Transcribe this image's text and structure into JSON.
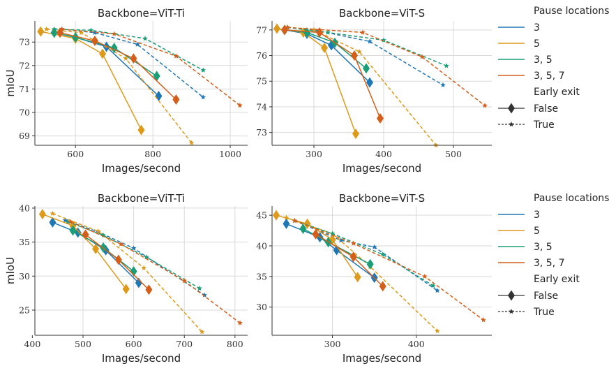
{
  "colors": {
    "3": "#1f77b4",
    "5": "#dd9a1b",
    "3, 5": "#1b9e77",
    "3, 5, 7": "#d35f1a"
  },
  "legend": {
    "title_pause": "Pause locations",
    "items": [
      "3",
      "5",
      "3, 5",
      "3, 5, 7"
    ],
    "title_exit": "Early exit",
    "exit_items": [
      "False",
      "True"
    ]
  },
  "chart_data": [
    {
      "type": "line",
      "title": "Backbone=ViT-Ti",
      "xlabel": "Images/second",
      "ylabel": "mIoU",
      "xlim": [
        495,
        1045
      ],
      "ylim": [
        68.6,
        73.9
      ],
      "xticks": [
        600,
        800,
        1000
      ],
      "yticks": [
        69,
        70,
        71,
        72,
        73
      ],
      "grid": true,
      "series": [
        {
          "name": "3",
          "early_exit": "False",
          "points": [
            [
              545,
              73.4
            ],
            [
              600,
              73.2
            ],
            [
              680,
              72.8
            ],
            [
              815,
              70.7
            ]
          ]
        },
        {
          "name": "3",
          "early_exit": "True",
          "points": [
            [
              565,
              73.55
            ],
            [
              650,
              73.4
            ],
            [
              760,
              72.9
            ],
            [
              930,
              70.65
            ]
          ]
        },
        {
          "name": "5",
          "early_exit": "False",
          "points": [
            [
              510,
              73.45
            ],
            [
              600,
              73.15
            ],
            [
              670,
              72.5
            ],
            [
              770,
              69.25
            ]
          ]
        },
        {
          "name": "5",
          "early_exit": "True",
          "points": [
            [
              525,
              73.55
            ],
            [
              615,
              73.4
            ],
            [
              730,
              72.3
            ],
            [
              900,
              68.7
            ]
          ]
        },
        {
          "name": "3, 5",
          "early_exit": "False",
          "points": [
            [
              545,
              73.4
            ],
            [
              600,
              73.2
            ],
            [
              700,
              72.75
            ],
            [
              810,
              71.55
            ]
          ]
        },
        {
          "name": "3, 5",
          "early_exit": "True",
          "points": [
            [
              545,
              73.55
            ],
            [
              640,
              73.5
            ],
            [
              780,
              73.15
            ],
            [
              930,
              71.8
            ]
          ]
        },
        {
          "name": "3, 5, 7",
          "early_exit": "False",
          "points": [
            [
              560,
              73.4
            ],
            [
              650,
              73.05
            ],
            [
              750,
              72.3
            ],
            [
              860,
              70.55
            ]
          ]
        },
        {
          "name": "3, 5, 7",
          "early_exit": "True",
          "points": [
            [
              565,
              73.55
            ],
            [
              700,
              73.35
            ],
            [
              860,
              72.4
            ],
            [
              1025,
              70.3
            ]
          ]
        }
      ]
    },
    {
      "type": "line",
      "title": "Backbone=ViT-S",
      "xlabel": "Images/second",
      "ylabel": "",
      "xlim": [
        240,
        555
      ],
      "ylim": [
        72.5,
        77.35
      ],
      "xticks": [
        300,
        400,
        500
      ],
      "yticks": [
        73,
        74,
        75,
        76,
        77
      ],
      "grid": true,
      "series": [
        {
          "name": "3",
          "early_exit": "False",
          "points": [
            [
              258,
              77.0
            ],
            [
              290,
              76.85
            ],
            [
              325,
              76.4
            ],
            [
              380,
              74.95
            ]
          ]
        },
        {
          "name": "3",
          "early_exit": "True",
          "points": [
            [
              262,
              77.1
            ],
            [
              300,
              77.0
            ],
            [
              380,
              76.55
            ],
            [
              485,
              74.85
            ]
          ]
        },
        {
          "name": "5",
          "early_exit": "False",
          "points": [
            [
              247,
              77.05
            ],
            [
              285,
              76.9
            ],
            [
              315,
              76.3
            ],
            [
              360,
              72.95
            ]
          ]
        },
        {
          "name": "5",
          "early_exit": "True",
          "points": [
            [
              262,
              77.1
            ],
            [
              300,
              77.0
            ],
            [
              365,
              76.15
            ],
            [
              475,
              72.5
            ]
          ]
        },
        {
          "name": "3, 5",
          "early_exit": "False",
          "points": [
            [
              258,
              77.0
            ],
            [
              290,
              76.9
            ],
            [
              330,
              76.5
            ],
            [
              375,
              75.5
            ]
          ]
        },
        {
          "name": "3, 5",
          "early_exit": "True",
          "points": [
            [
              262,
              77.1
            ],
            [
              320,
              76.9
            ],
            [
              400,
              76.6
            ],
            [
              490,
              75.6
            ]
          ]
        },
        {
          "name": "3, 5, 7",
          "early_exit": "False",
          "points": [
            [
              258,
              77.0
            ],
            [
              308,
              76.9
            ],
            [
              358,
              76.0
            ],
            [
              395,
              73.55
            ]
          ]
        },
        {
          "name": "3, 5, 7",
          "early_exit": "True",
          "points": [
            [
              262,
              77.1
            ],
            [
              370,
              76.9
            ],
            [
              455,
              75.95
            ],
            [
              545,
              74.05
            ]
          ]
        }
      ]
    },
    {
      "type": "line",
      "title": "Backbone=ViT-Ti",
      "xlabel": "Images/second",
      "ylabel": "mIoU",
      "xlim": [
        405,
        825
      ],
      "ylim": [
        21.3,
        40.3
      ],
      "xticks": [
        400,
        500,
        600,
        700,
        800
      ],
      "yticks": [
        25,
        30,
        35,
        40
      ],
      "grid": true,
      "series": [
        {
          "name": "3",
          "early_exit": "False",
          "points": [
            [
              440,
              37.9
            ],
            [
              490,
              36.4
            ],
            [
              545,
              33.8
            ],
            [
              610,
              29.0
            ]
          ]
        },
        {
          "name": "3",
          "early_exit": "True",
          "points": [
            [
              465,
              38.2
            ],
            [
              530,
              36.5
            ],
            [
              600,
              34.1
            ],
            [
              740,
              27.2
            ]
          ]
        },
        {
          "name": "5",
          "early_exit": "False",
          "points": [
            [
              420,
              39.1
            ],
            [
              480,
              37.4
            ],
            [
              525,
              34.0
            ],
            [
              585,
              28.1
            ]
          ]
        },
        {
          "name": "5",
          "early_exit": "True",
          "points": [
            [
              440,
              39.2
            ],
            [
              530,
              36.6
            ],
            [
              620,
              31.2
            ],
            [
              735,
              21.8
            ]
          ]
        },
        {
          "name": "3, 5",
          "early_exit": "False",
          "points": [
            [
              480,
              36.7
            ],
            [
              540,
              34.2
            ],
            [
              600,
              30.7
            ]
          ]
        },
        {
          "name": "3, 5",
          "early_exit": "True",
          "points": [
            [
              470,
              38.0
            ],
            [
              540,
              36.0
            ],
            [
              625,
              32.8
            ],
            [
              730,
              28.2
            ]
          ]
        },
        {
          "name": "3, 5, 7",
          "early_exit": "False",
          "points": [
            [
              505,
              36.1
            ],
            [
              570,
              32.4
            ],
            [
              630,
              28.0
            ]
          ]
        },
        {
          "name": "3, 5, 7",
          "early_exit": "True",
          "points": [
            [
              475,
              38.0
            ],
            [
              575,
              34.7
            ],
            [
              700,
              29.3
            ],
            [
              810,
              23.1
            ]
          ]
        }
      ]
    },
    {
      "type": "line",
      "title": "Backbone=ViT-S",
      "xlabel": "Images/second",
      "ylabel": "",
      "xlim": [
        228,
        490
      ],
      "ylim": [
        25.4,
        46.5
      ],
      "xticks": [
        300,
        400
      ],
      "yticks": [
        30,
        35,
        40,
        45
      ],
      "grid": true,
      "series": [
        {
          "name": "3",
          "early_exit": "False",
          "points": [
            [
              245,
              43.6
            ],
            [
              285,
              41.4
            ],
            [
              305,
              39.3
            ],
            [
              350,
              34.8
            ]
          ]
        },
        {
          "name": "3",
          "early_exit": "True",
          "points": [
            [
              255,
              44.1
            ],
            [
              310,
              40.9
            ],
            [
              350,
              39.8
            ],
            [
              425,
              32.7
            ]
          ]
        },
        {
          "name": "5",
          "early_exit": "False",
          "points": [
            [
              233,
              45.0
            ],
            [
              270,
              43.6
            ],
            [
              300,
              41.0
            ],
            [
              330,
              34.9
            ]
          ]
        },
        {
          "name": "5",
          "early_exit": "True",
          "points": [
            [
              245,
              44.6
            ],
            [
              300,
              42.0
            ],
            [
              345,
              36.6
            ],
            [
              425,
              26.1
            ]
          ]
        },
        {
          "name": "3, 5",
          "early_exit": "False",
          "points": [
            [
              265,
              42.8
            ],
            [
              295,
              40.6
            ],
            [
              345,
              37.0
            ]
          ]
        },
        {
          "name": "3, 5",
          "early_exit": "True",
          "points": [
            [
              255,
              44.1
            ],
            [
              300,
              42.0
            ],
            [
              360,
              38.6
            ],
            [
              420,
              33.5
            ]
          ]
        },
        {
          "name": "3, 5, 7",
          "early_exit": "False",
          "points": [
            [
              280,
              41.9
            ],
            [
              325,
              38.2
            ],
            [
              360,
              33.4
            ]
          ]
        },
        {
          "name": "3, 5, 7",
          "early_exit": "True",
          "points": [
            [
              255,
              44.1
            ],
            [
              325,
              40.4
            ],
            [
              410,
              35.0
            ],
            [
              480,
              27.9
            ]
          ]
        }
      ]
    }
  ]
}
